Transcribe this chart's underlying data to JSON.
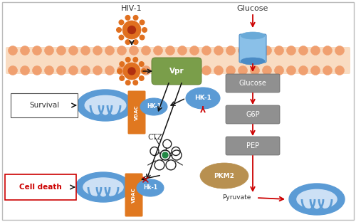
{
  "bg_color": "#ffffff",
  "border_color": "#bbbbbb",
  "membrane_color": "#f0a070",
  "gray_box_color": "#909090",
  "orange_vdac_color": "#e07820",
  "green_vpr_color": "#7a9e4a",
  "blue_oval_color": "#5b9bd5",
  "pkm2_color": "#b89050",
  "red_arrow": "#cc0000",
  "black_arrow": "#111111",
  "glucose_label": "Glucose",
  "hiv_label": "HIV-1",
  "vpr_label": "Vpr",
  "hk1_center_label": "HK-1",
  "hk1_mito_label": "HK-1",
  "hk1_lower_label": "Hk-1",
  "glucose_box_label": "Glucose",
  "g6p_label": "G6P",
  "pep_label": "PEP",
  "pkm2_label": "PKM2",
  "pyruvate_label": "Pyruvate",
  "survival_label": "Survival",
  "cell_death_label": "Cell death",
  "ctz_label": "CTZ"
}
